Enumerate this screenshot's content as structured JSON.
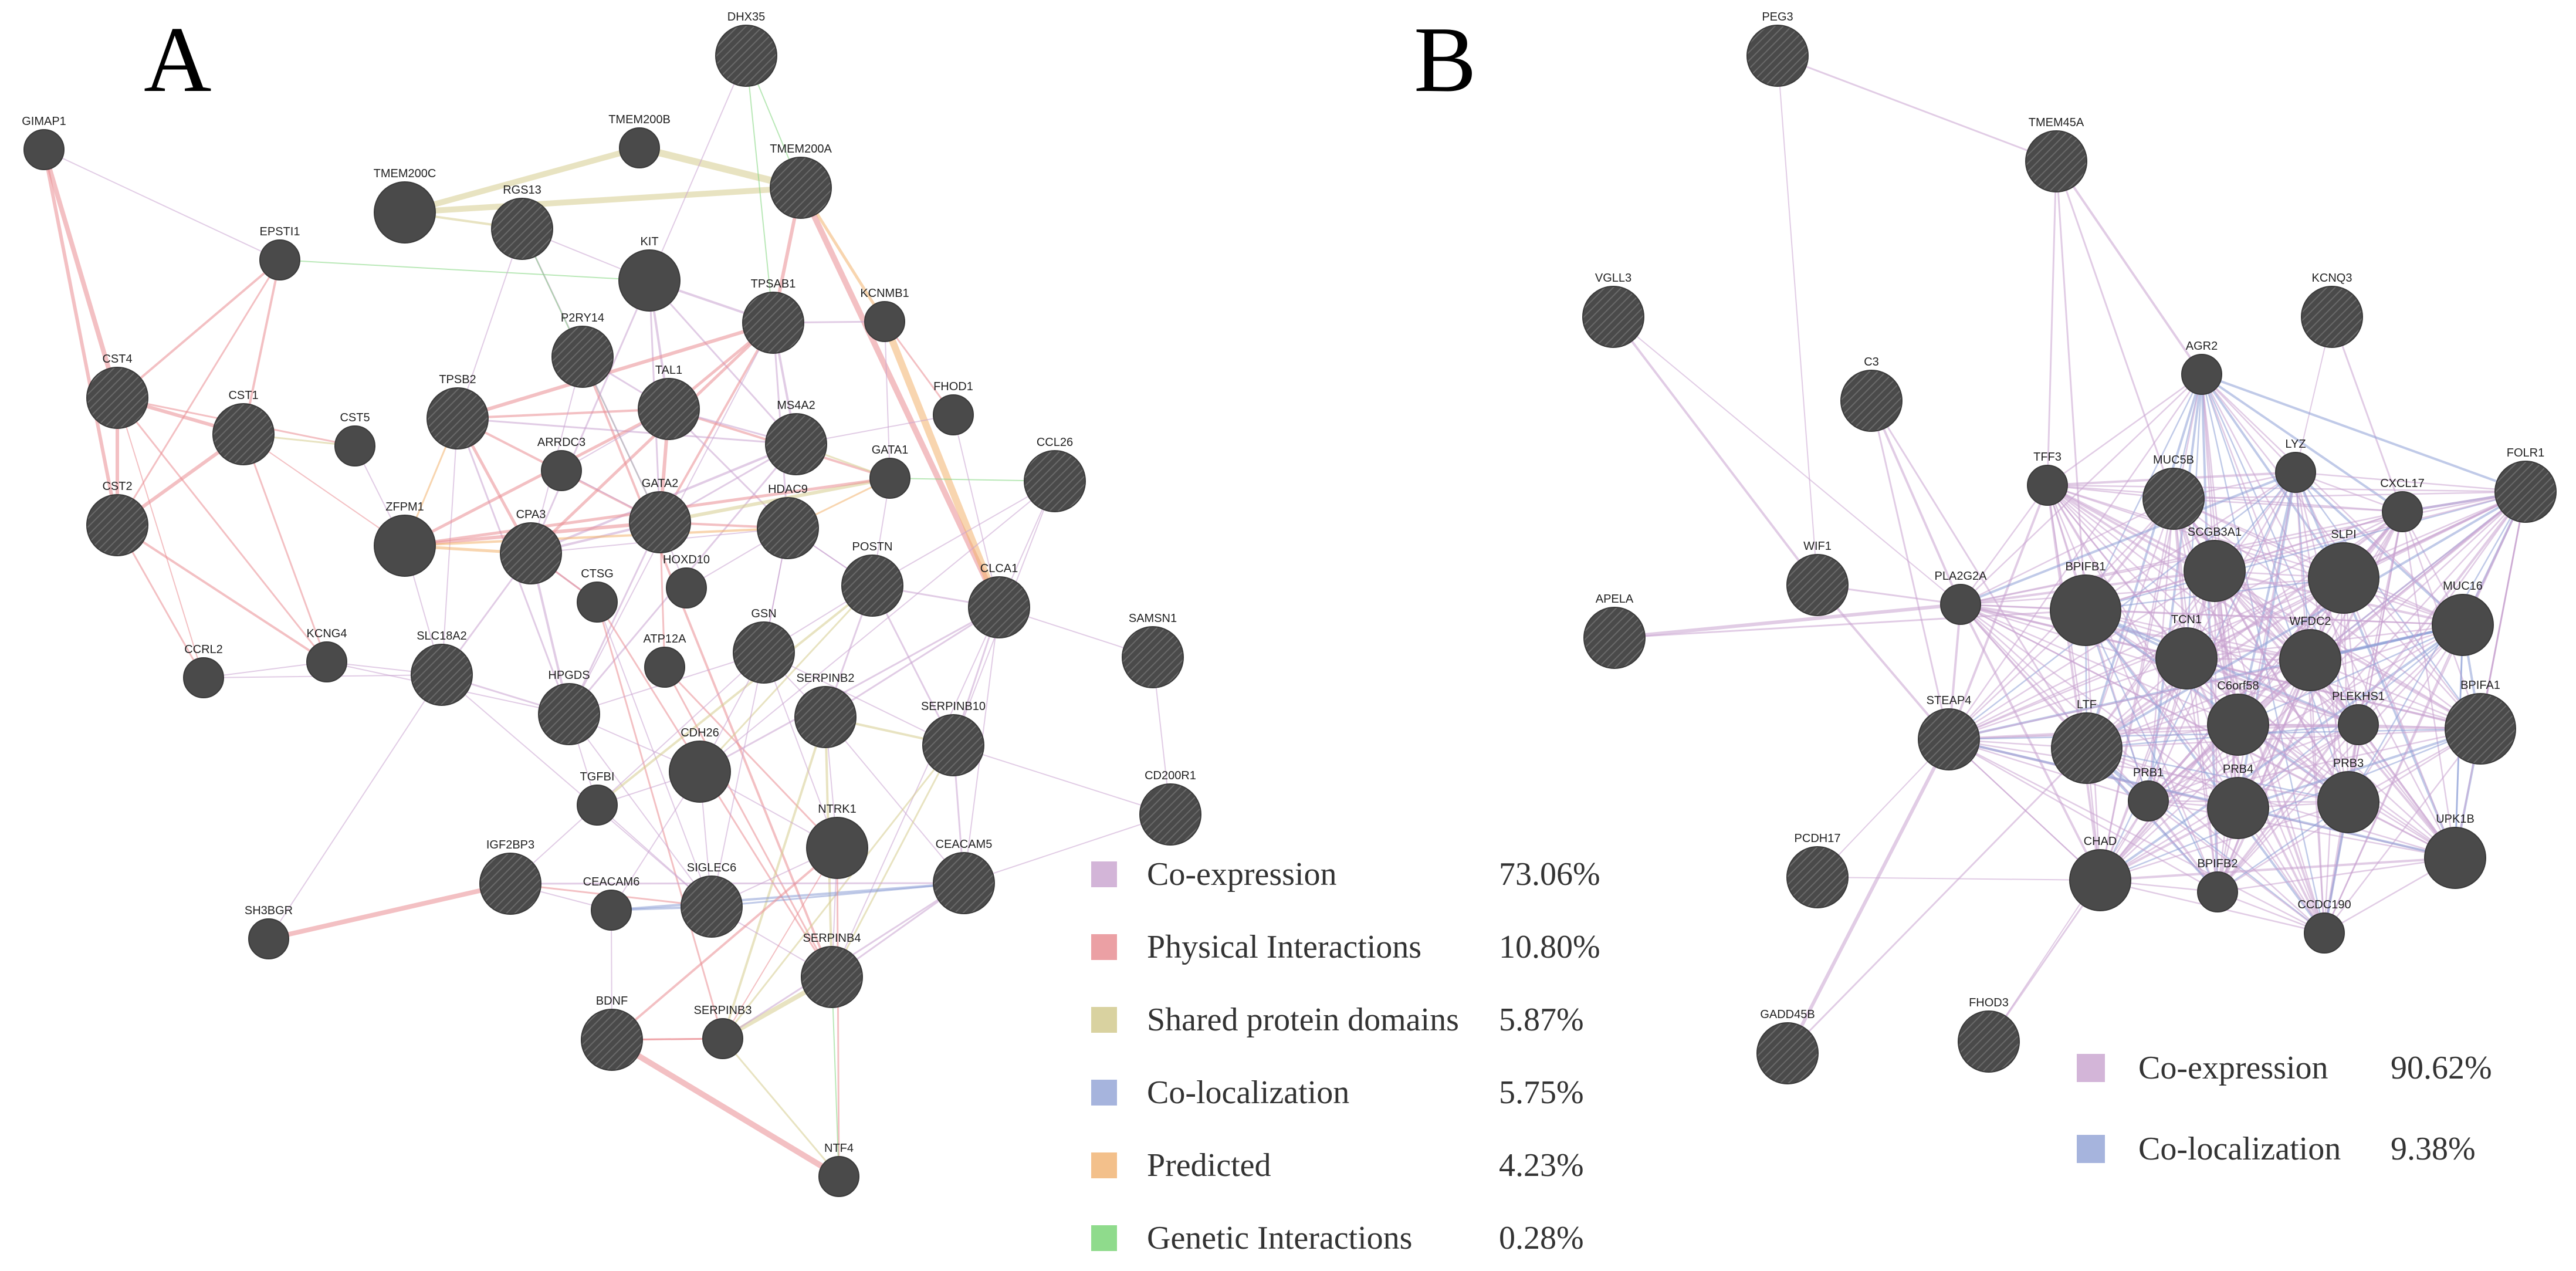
{
  "panels": [
    {
      "letter": "A",
      "nodes": {
        "DHX35": {
          "label": "DHX35",
          "size": "medium",
          "query": false
        },
        "GIMAP1": {
          "label": "GIMAP1",
          "size": "small",
          "query": true
        },
        "TMEM200B": {
          "label": "TMEM200B",
          "size": "small",
          "query": true
        },
        "TMEM200A": {
          "label": "TMEM200A",
          "size": "medium",
          "query": false
        },
        "TMEM200C": {
          "label": "TMEM200C",
          "size": "medium",
          "query": true
        },
        "RGS13": {
          "label": "RGS13",
          "size": "medium",
          "query": false
        },
        "EPSTI1": {
          "label": "EPSTI1",
          "size": "small",
          "query": true
        },
        "KIT": {
          "label": "KIT",
          "size": "medium",
          "query": true
        },
        "TPSAB1": {
          "label": "TPSAB1",
          "size": "medium",
          "query": false
        },
        "KCNMB1": {
          "label": "KCNMB1",
          "size": "small",
          "query": true
        },
        "P2RY14": {
          "label": "P2RY14",
          "size": "medium",
          "query": false
        },
        "CST4": {
          "label": "CST4",
          "size": "medium",
          "query": false
        },
        "CST1": {
          "label": "CST1",
          "size": "medium",
          "query": false
        },
        "CST5": {
          "label": "CST5",
          "size": "small",
          "query": true
        },
        "TPSB2": {
          "label": "TPSB2",
          "size": "medium",
          "query": false
        },
        "TAL1": {
          "label": "TAL1",
          "size": "medium",
          "query": false
        },
        "MS4A2": {
          "label": "MS4A2",
          "size": "medium",
          "query": false
        },
        "FHOD1": {
          "label": "FHOD1",
          "size": "small",
          "query": true
        },
        "CCL26": {
          "label": "CCL26",
          "size": "medium",
          "query": false
        },
        "ARRDC3": {
          "label": "ARRDC3",
          "size": "small",
          "query": true
        },
        "GATA1": {
          "label": "GATA1",
          "size": "small",
          "query": true
        },
        "CST2": {
          "label": "CST2",
          "size": "medium",
          "query": false
        },
        "ZFPM1": {
          "label": "ZFPM1",
          "size": "medium",
          "query": true
        },
        "CPA3": {
          "label": "CPA3",
          "size": "medium",
          "query": false
        },
        "GATA2": {
          "label": "GATA2",
          "size": "medium",
          "query": false
        },
        "HDAC9": {
          "label": "HDAC9",
          "size": "medium",
          "query": false
        },
        "HOXD10": {
          "label": "HOXD10",
          "size": "small",
          "query": true
        },
        "POSTN": {
          "label": "POSTN",
          "size": "medium",
          "query": false
        },
        "CLCA1": {
          "label": "CLCA1",
          "size": "medium",
          "query": false
        },
        "CTSG": {
          "label": "CTSG",
          "size": "small",
          "query": true
        },
        "SAMSN1": {
          "label": "SAMSN1",
          "size": "medium",
          "query": false
        },
        "SLC18A2": {
          "label": "SLC18A2",
          "size": "medium",
          "query": false
        },
        "KCNG4": {
          "label": "KCNG4",
          "size": "small",
          "query": true
        },
        "CCRL2": {
          "label": "CCRL2",
          "size": "small",
          "query": true
        },
        "ATP12A": {
          "label": "ATP12A",
          "size": "small",
          "query": true
        },
        "GSN": {
          "label": "GSN",
          "size": "medium",
          "query": false
        },
        "HPGDS": {
          "label": "HPGDS",
          "size": "medium",
          "query": false
        },
        "SERPINB2": {
          "label": "SERPINB2",
          "size": "medium",
          "query": false
        },
        "SERPINB10": {
          "label": "SERPINB10",
          "size": "medium",
          "query": false
        },
        "CDH26": {
          "label": "CDH26",
          "size": "medium",
          "query": true
        },
        "TGFBI": {
          "label": "TGFBI",
          "size": "small",
          "query": true
        },
        "CD200R1": {
          "label": "CD200R1",
          "size": "medium",
          "query": false
        },
        "NTRK1": {
          "label": "NTRK1",
          "size": "medium",
          "query": true
        },
        "IGF2BP3": {
          "label": "IGF2BP3",
          "size": "medium",
          "query": false
        },
        "CEACAM5": {
          "label": "CEACAM5",
          "size": "medium",
          "query": false
        },
        "CEACAM6": {
          "label": "CEACAM6",
          "size": "small",
          "query": true
        },
        "SIGLEC6": {
          "label": "SIGLEC6",
          "size": "medium",
          "query": false
        },
        "SH3BGR": {
          "label": "SH3BGR",
          "size": "small",
          "query": true
        },
        "SERPINB4": {
          "label": "SERPINB4",
          "size": "medium",
          "query": false
        },
        "BDNF": {
          "label": "BDNF",
          "size": "medium",
          "query": false
        },
        "SERPINB3": {
          "label": "SERPINB3",
          "size": "small",
          "query": true
        },
        "NTF4": {
          "label": "NTF4",
          "size": "small",
          "query": true
        }
      },
      "legend": [
        {
          "label": "Co-expression",
          "percent": "73.06%",
          "color": "#d3b5d8"
        },
        {
          "label": "Physical Interactions",
          "percent": "10.80%",
          "color": "#eba0a4"
        },
        {
          "label": "Shared protein domains",
          "percent": "5.87%",
          "color": "#d9d2a0"
        },
        {
          "label": "Co-localization",
          "percent": "5.75%",
          "color": "#a6b4dd"
        },
        {
          "label": "Predicted",
          "percent": "4.23%",
          "color": "#f3c08b"
        },
        {
          "label": "Genetic Interactions",
          "percent": "0.28%",
          "color": "#8fdb8c"
        }
      ]
    },
    {
      "letter": "B",
      "nodes": {
        "PEG3": {
          "label": "PEG3",
          "size": "medium",
          "query": false
        },
        "TMEM45A": {
          "label": "TMEM45A",
          "size": "medium",
          "query": false
        },
        "VGLL3": {
          "label": "VGLL3",
          "size": "medium",
          "query": false
        },
        "KCNQ3": {
          "label": "KCNQ3",
          "size": "medium",
          "query": false
        },
        "C3": {
          "label": "C3",
          "size": "medium",
          "query": false
        },
        "AGR2": {
          "label": "AGR2",
          "size": "small",
          "query": true
        },
        "TFF3": {
          "label": "TFF3",
          "size": "small",
          "query": true
        },
        "MUC5B": {
          "label": "MUC5B",
          "size": "medium",
          "query": false
        },
        "LYZ": {
          "label": "LYZ",
          "size": "small",
          "query": true
        },
        "FOLR1": {
          "label": "FOLR1",
          "size": "medium",
          "query": false
        },
        "CXCL17": {
          "label": "CXCL17",
          "size": "small",
          "query": true
        },
        "WIF1": {
          "label": "WIF1",
          "size": "medium",
          "query": false
        },
        "PLA2G2A": {
          "label": "PLA2G2A",
          "size": "small",
          "query": true
        },
        "BPIFB1": {
          "label": "BPIFB1",
          "size": "large",
          "query": true
        },
        "SCGB3A1": {
          "label": "SCGB3A1",
          "size": "medium",
          "query": true
        },
        "SLPI": {
          "label": "SLPI",
          "size": "large",
          "query": true
        },
        "MUC16": {
          "label": "MUC16",
          "size": "medium",
          "query": true
        },
        "APELA": {
          "label": "APELA",
          "size": "medium",
          "query": false
        },
        "TCN1": {
          "label": "TCN1",
          "size": "medium",
          "query": true
        },
        "WFDC2": {
          "label": "WFDC2",
          "size": "medium",
          "query": true
        },
        "STEAP4": {
          "label": "STEAP4",
          "size": "medium",
          "query": false
        },
        "LTF": {
          "label": "LTF",
          "size": "large",
          "query": false
        },
        "C6orf58": {
          "label": "C6orf58",
          "size": "medium",
          "query": true
        },
        "PLEKHS1": {
          "label": "PLEKHS1",
          "size": "small",
          "query": true
        },
        "BPIFA1": {
          "label": "BPIFA1",
          "size": "large",
          "query": false
        },
        "PRB1": {
          "label": "PRB1",
          "size": "small",
          "query": true
        },
        "PRB4": {
          "label": "PRB4",
          "size": "medium",
          "query": true
        },
        "PRB3": {
          "label": "PRB3",
          "size": "medium",
          "query": true
        },
        "PCDH17": {
          "label": "PCDH17",
          "size": "medium",
          "query": false
        },
        "CHAD": {
          "label": "CHAD",
          "size": "medium",
          "query": true
        },
        "BPIFB2": {
          "label": "BPIFB2",
          "size": "small",
          "query": true
        },
        "UPK1B": {
          "label": "UPK1B",
          "size": "medium",
          "query": true
        },
        "CCDC190": {
          "label": "CCDC190",
          "size": "small",
          "query": true
        },
        "GADD45B": {
          "label": "GADD45B",
          "size": "medium",
          "query": false
        },
        "FHOD3": {
          "label": "FHOD3",
          "size": "medium",
          "query": false
        }
      },
      "legend": [
        {
          "label": "Co-expression",
          "percent": "90.62%",
          "color": "#d3b5d8"
        },
        {
          "label": "Co-localization",
          "percent": "9.38%",
          "color": "#a6b4dd"
        }
      ]
    }
  ]
}
